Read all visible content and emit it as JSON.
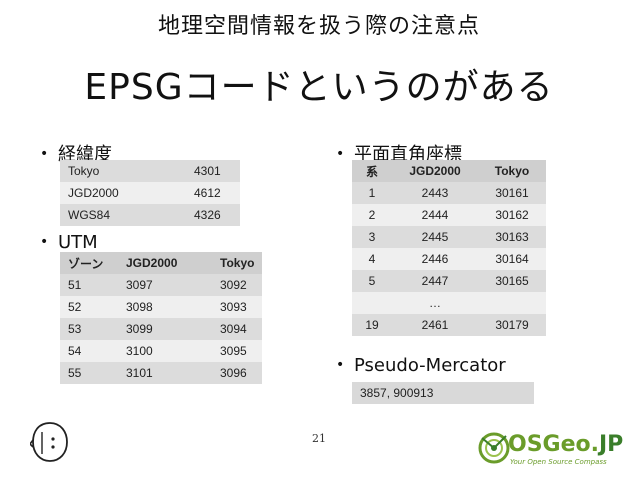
{
  "slide": {
    "subtitle": "地理空間情報を扱う際の注意点",
    "title": "EPSGコードというのがある",
    "page_number": "21"
  },
  "latlon": {
    "label": "経緯度",
    "rows": [
      [
        "Tokyo",
        "4301"
      ],
      [
        "JGD2000",
        "4612"
      ],
      [
        "WGS84",
        "4326"
      ]
    ]
  },
  "utm": {
    "label": "UTM",
    "headers": [
      "ゾーン",
      "JGD2000",
      "Tokyo"
    ],
    "rows": [
      [
        "51",
        "3097",
        "3092"
      ],
      [
        "52",
        "3098",
        "3093"
      ],
      [
        "53",
        "3099",
        "3094"
      ],
      [
        "54",
        "3100",
        "3095"
      ],
      [
        "55",
        "3101",
        "3096"
      ]
    ]
  },
  "plane": {
    "label": "平面直角座標",
    "headers": [
      "系",
      "JGD2000",
      "Tokyo"
    ],
    "rows": [
      [
        "1",
        "2443",
        "30161"
      ],
      [
        "2",
        "2444",
        "30162"
      ],
      [
        "3",
        "2445",
        "30163"
      ],
      [
        "4",
        "2446",
        "30164"
      ],
      [
        "5",
        "2447",
        "30165"
      ],
      [
        "",
        "…",
        ""
      ],
      [
        "19",
        "2461",
        "30179"
      ]
    ]
  },
  "pseudo": {
    "label": "Pseudo-Mercator",
    "value": "3857, 900913"
  },
  "logo": {
    "name_main": "OSGeo.",
    "name_jp": "JP",
    "tagline": "Your Open Source Compass",
    "brand_color": "#6a9c2a"
  },
  "icons": {
    "bullet": "•"
  }
}
